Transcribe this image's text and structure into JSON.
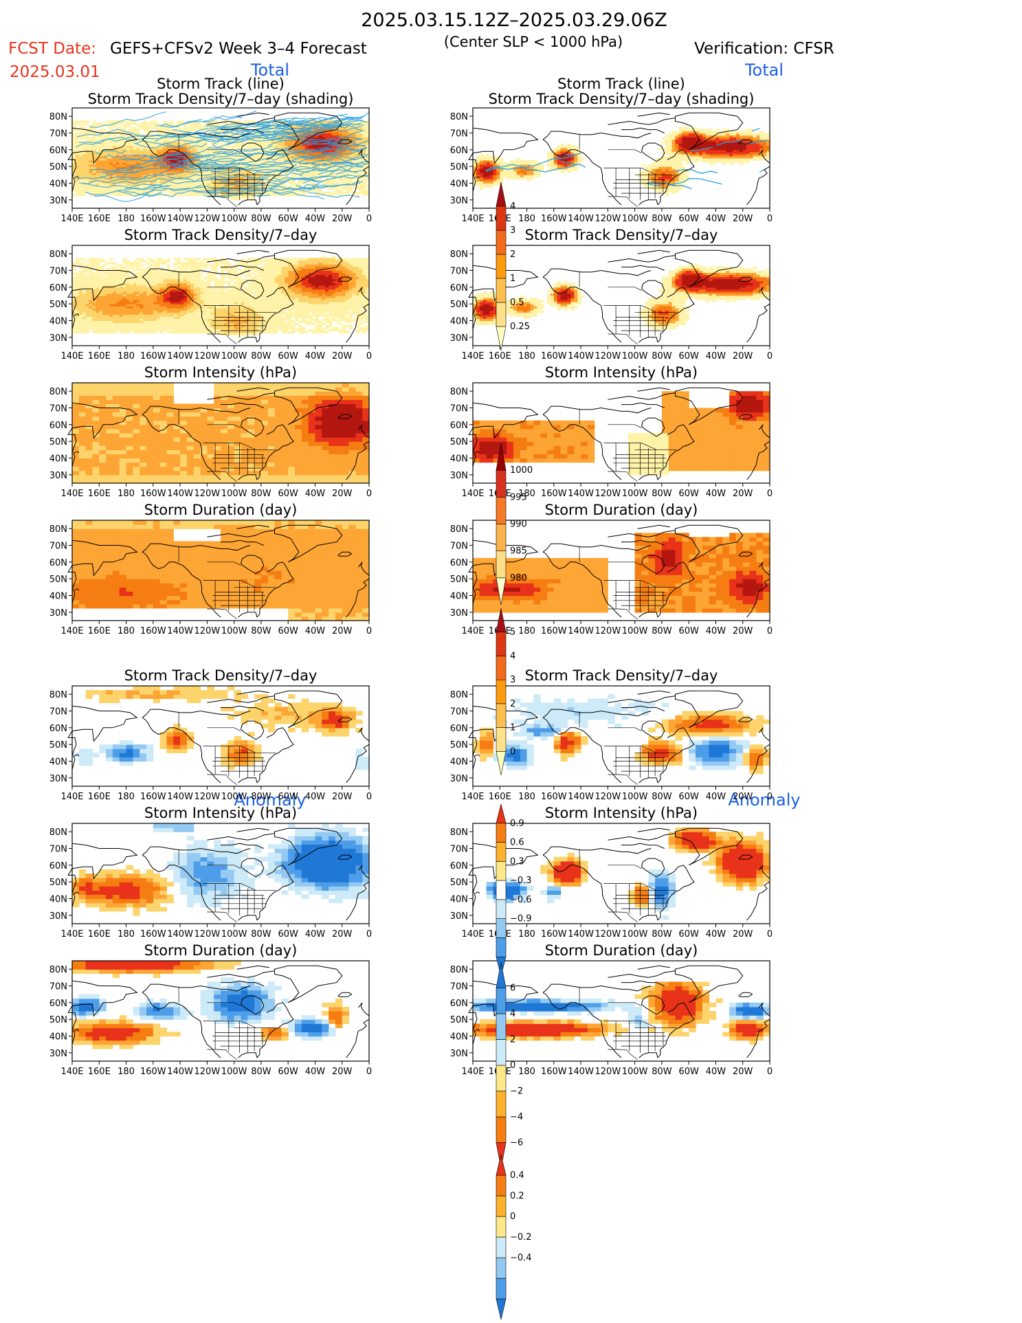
{
  "header": {
    "period": "2025.03.15.12Z–2025.03.29.06Z",
    "subtitle": "(Center SLP < 1000 hPa)",
    "fcst_label": "FCST Date:",
    "fcst_date": "2025.03.01",
    "model": "GEFS+CFSv2 Week 3–4 Forecast",
    "verification": "Verification: CFSR"
  },
  "sections": {
    "total": "Total",
    "anomaly": "Anomaly"
  },
  "panel_titles": {
    "track": [
      "Storm Track (line)",
      "Storm Track Density/7–day (shading)"
    ],
    "density": "Storm Track Density/7–day",
    "intensity": "Storm Intensity (hPa)",
    "duration": "Storm Duration (day)"
  },
  "map_axes": {
    "lon_labels": [
      "140E",
      "160E",
      "180",
      "160W",
      "140W",
      "120W",
      "100W",
      "80W",
      "60W",
      "40W",
      "20W",
      "0"
    ],
    "lat_labels": [
      "80N",
      "70N",
      "60N",
      "50N",
      "40N",
      "30N"
    ]
  },
  "colorbars": [
    {
      "id": "density-total",
      "labels": [
        "4",
        "3",
        "2",
        "1",
        "0.5",
        "0.25"
      ],
      "colors": [
        "#ffffbf",
        "#fde28a",
        "#fdc04f",
        "#fd9b0c",
        "#f36b1c",
        "#dd3613",
        "#a50f15"
      ]
    },
    {
      "id": "intensity-total",
      "labels": [
        "1000",
        "995",
        "990",
        "985",
        "980"
      ],
      "colors": [
        "#ffffcc",
        "#fedf88",
        "#fdb44e",
        "#f57a23",
        "#d7301f",
        "#990000"
      ]
    },
    {
      "id": "duration-total",
      "labels": [
        "5",
        "4",
        "3",
        "2",
        "1",
        "0"
      ],
      "colors": [
        "#ffffbf",
        "#fde28a",
        "#fdc04f",
        "#fd9b0c",
        "#f36b1c",
        "#dd3613",
        "#a50f15"
      ]
    },
    {
      "id": "density-anom",
      "labels": [
        "0.9",
        "0.6",
        "0.3",
        "−0.3",
        "−0.6",
        "−0.9"
      ],
      "colors": [
        "#1f78d6",
        "#4d9de8",
        "#94c9f2",
        "#cdeaf9",
        "#ffffff",
        "#ffe88a",
        "#fdb22c",
        "#f57d12",
        "#e8321a"
      ]
    },
    {
      "id": "intensity-anom",
      "labels": [
        "6",
        "4",
        "2",
        "0",
        "−2",
        "−4",
        "−6"
      ],
      "colors": [
        "#e8321a",
        "#f57d12",
        "#fdb22c",
        "#ffe88a",
        "#cdeaf9",
        "#94c9f2",
        "#4d9de8",
        "#1f78d6"
      ]
    },
    {
      "id": "duration-anom",
      "labels": [
        "0.4",
        "0.2",
        "0",
        "−0.2",
        "−0.4"
      ],
      "colors": [
        "#1f78d6",
        "#4d9de8",
        "#94c9f2",
        "#cdeaf9",
        "#ffe88a",
        "#fdb22c",
        "#f57d12",
        "#e8321a"
      ]
    }
  ],
  "chart_data": {
    "type": "heatmap",
    "region": {
      "lon_range": [
        "140E",
        "0"
      ],
      "lat_range": [
        "25N",
        "85N"
      ]
    },
    "palette_hex": {
      "pale_yellow": "#fef3a8",
      "light_orange": "#fdd46b",
      "orange": "#fda535",
      "dark_orange": "#f57d12",
      "red": "#e8321a",
      "dark_red": "#b3170f",
      "light_blue": "#cdeaf9",
      "mid_blue": "#94c9f2",
      "blue": "#4d9de8",
      "dark_blue": "#1f78d6",
      "track_line": "#2a9fe0"
    },
    "panels": [
      {
        "column": "forecast",
        "field": "storm_track_density_with_tracks",
        "dominant": "orange",
        "maxima": [
          "North Atlantic near 40W 65N",
          "Gulf of Alaska near 145W 55N",
          "North Pacific 160E 50N"
        ]
      },
      {
        "column": "verification",
        "field": "storm_track_density_with_tracks",
        "dominant": "red",
        "maxima": [
          "North Atlantic 20W-60W 55-65N",
          "Gulf of Alaska 150W 55N",
          "NW Pacific 145E 45N"
        ]
      },
      {
        "column": "forecast",
        "field": "storm_track_density",
        "dominant": "orange"
      },
      {
        "column": "verification",
        "field": "storm_track_density",
        "dominant": "red"
      },
      {
        "column": "forecast",
        "field": "storm_intensity",
        "dominant": "orange",
        "strongest": "North Atlantic 10W-40W"
      },
      {
        "column": "verification",
        "field": "storm_intensity",
        "dominant": "red",
        "strongest": "NW Pacific 150E-170E"
      },
      {
        "column": "forecast",
        "field": "storm_duration",
        "dominant": "orange"
      },
      {
        "column": "verification",
        "field": "storm_duration",
        "dominant": "red",
        "longest": "Labrador / Hudson Bay and NE Atlantic"
      },
      {
        "column": "forecast",
        "field": "density_anomaly",
        "positive": [
          "Gulf of Alaska",
          "Central US",
          "N Atlantic 20W-40W 65N"
        ],
        "negative": [
          "Central N Pacific 170E-170W 45N"
        ]
      },
      {
        "column": "verification",
        "field": "density_anomaly",
        "positive": [
          "Gulf of Alaska",
          "Eastern US",
          "N Atlantic 60N"
        ],
        "negative": [
          "N Pacific 40-50N",
          "Mid-Atlantic 30W-50W 45N"
        ]
      },
      {
        "column": "forecast",
        "field": "intensity_anomaly",
        "positive": [
          "Central N Pacific"
        ],
        "negative": [
          "Greenland / N Atlantic"
        ]
      },
      {
        "column": "verification",
        "field": "intensity_anomaly",
        "positive": [
          "NE Atlantic 10W-40W",
          "Gulf of Alaska"
        ],
        "negative": [
          "NW Pacific 160E-170W 45N"
        ]
      },
      {
        "column": "forecast",
        "field": "duration_anomaly",
        "positive": [
          "Arctic 80N Pacific side",
          "Central N Pacific 40N"
        ],
        "negative": [
          "Central Canada",
          "Atlantic 40-50N"
        ]
      },
      {
        "column": "verification",
        "field": "duration_anomaly",
        "positive": [
          "Pacific 40-50N",
          "Eastern Canada",
          "NE Atlantic 40N"
        ],
        "negative": [
          "Pacific 55-60N",
          "NE Atlantic 55N"
        ]
      }
    ]
  }
}
